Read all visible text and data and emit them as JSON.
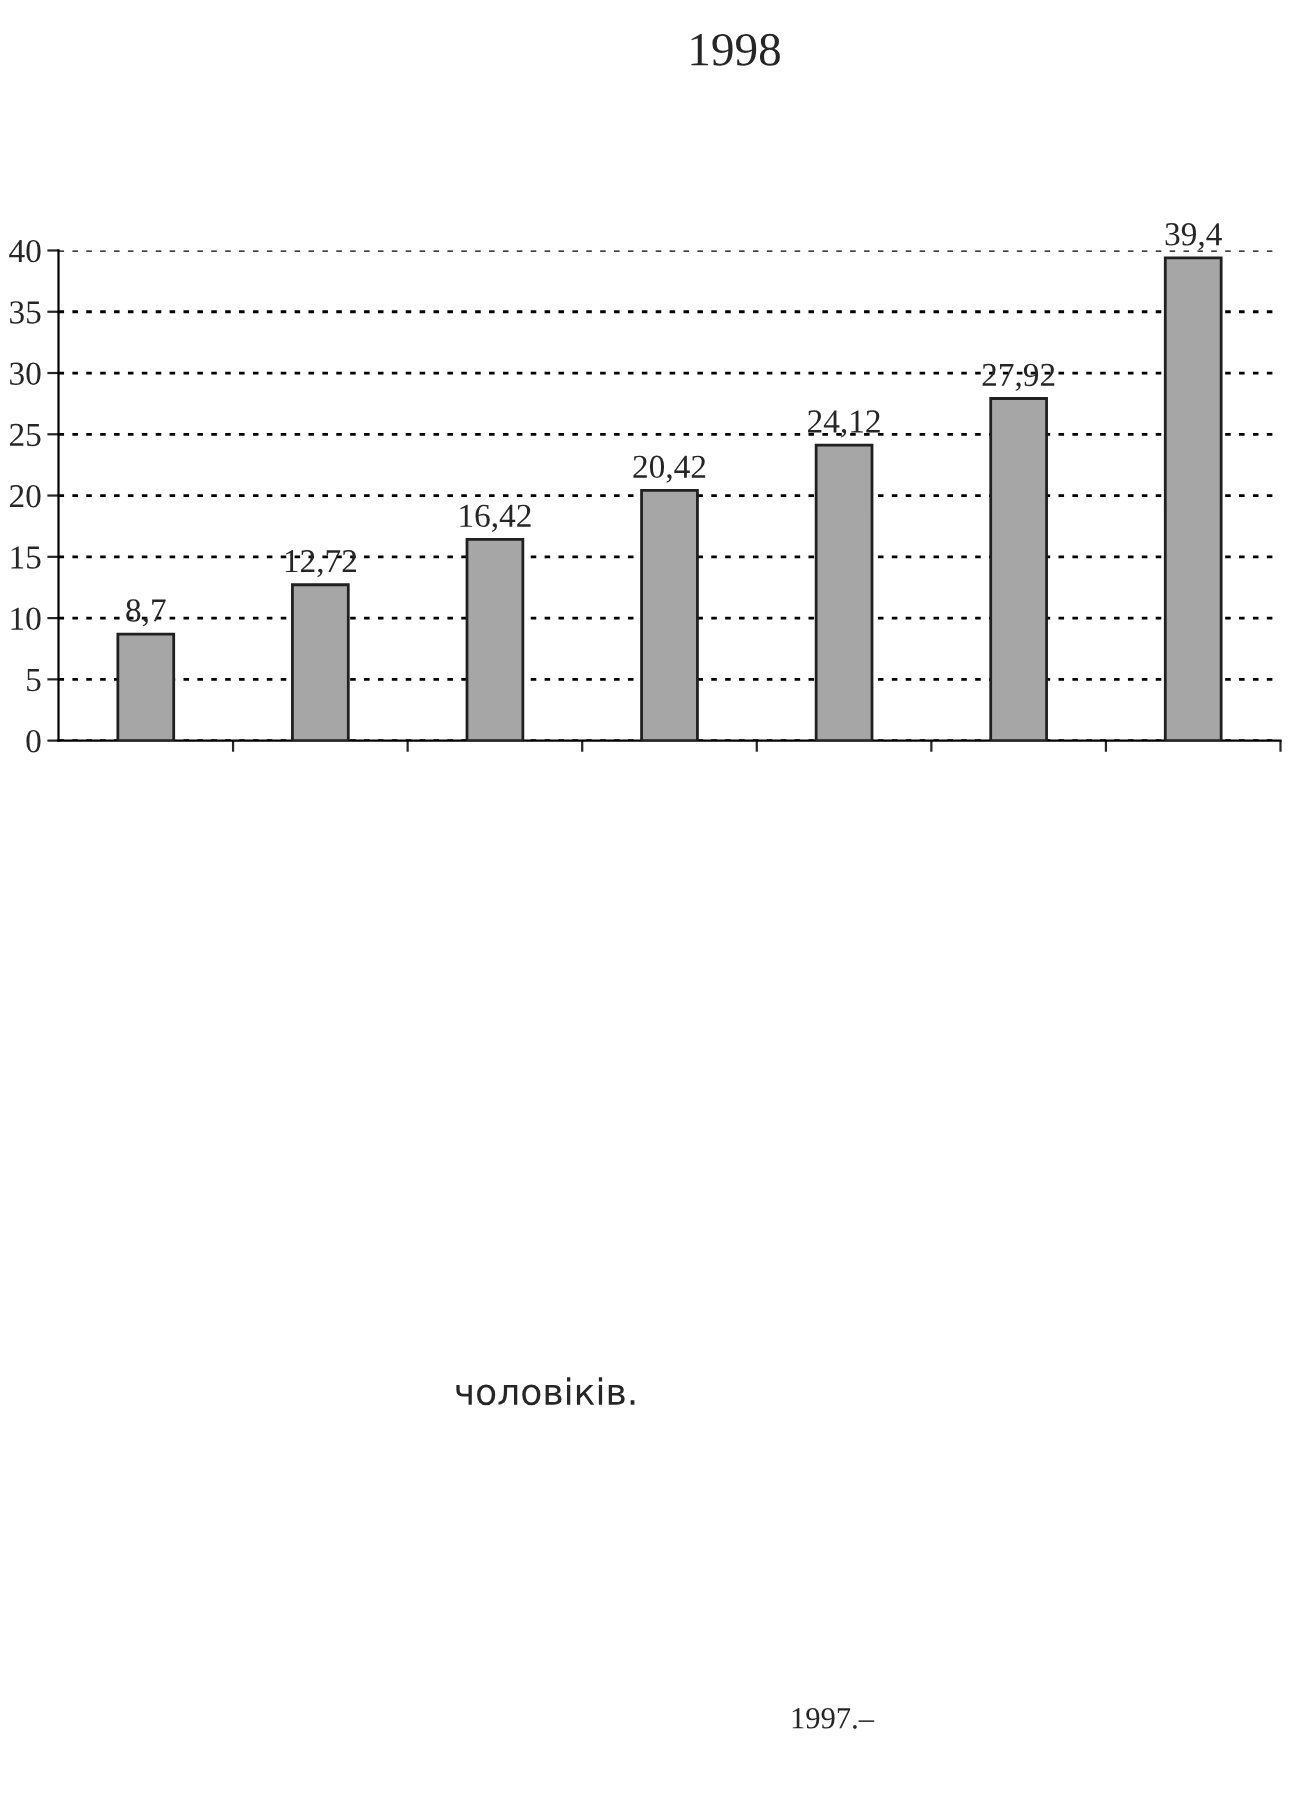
{
  "chart_data": {
    "type": "bar",
    "title": "1998",
    "categories": [
      null,
      null,
      null,
      null,
      null,
      null,
      null
    ],
    "values": [
      8.7,
      12.72,
      16.42,
      20.42,
      24.12,
      27.92,
      39.4
    ],
    "value_labels": [
      "8,7",
      "12,72",
      "16,42",
      "20,42",
      "24,12",
      "27,92",
      "39,4"
    ],
    "color": "#a6a6a6",
    "ylim": [
      0,
      40
    ],
    "yticks": [
      0,
      5,
      10,
      15,
      20,
      25,
      30,
      35,
      40
    ],
    "grid": "y",
    "line_style": "dotted",
    "annotations": [
      "чоловіків.",
      "1997.–"
    ]
  }
}
